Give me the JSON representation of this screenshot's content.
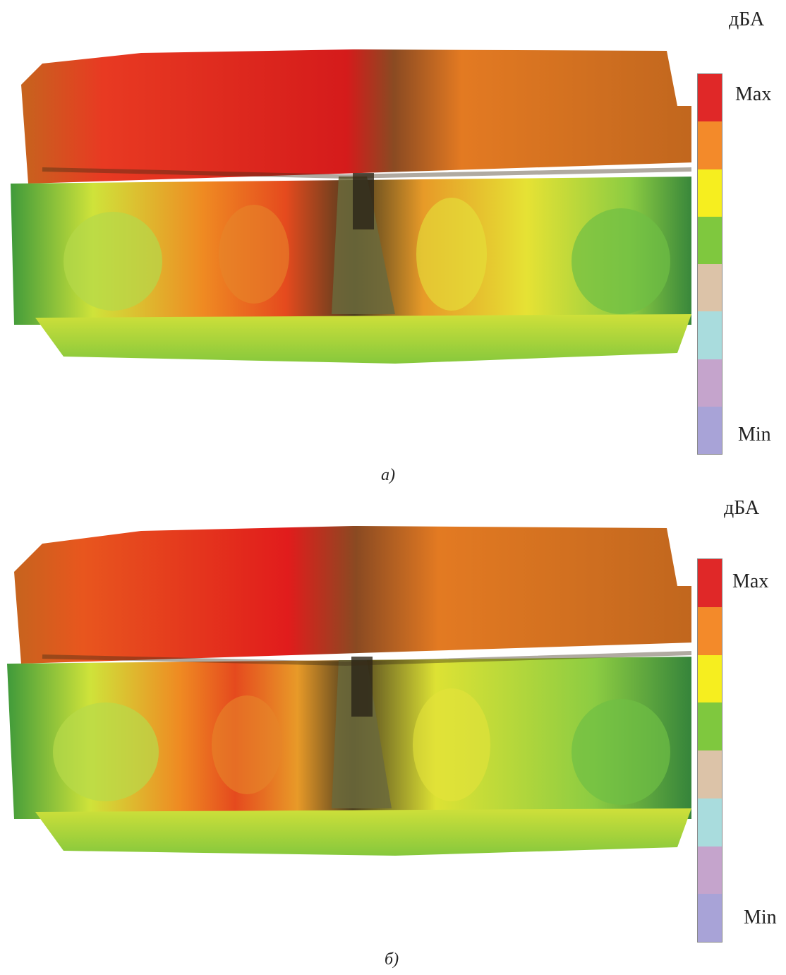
{
  "panels": [
    {
      "unit": "дБА",
      "max_label": "Max",
      "min_label": "Min",
      "caption": "а)"
    },
    {
      "unit": "дБА",
      "max_label": "Max",
      "min_label": "Min",
      "caption": "б)"
    }
  ],
  "colorbar_colors": [
    "#e02828",
    "#f38a2a",
    "#f6ee1f",
    "#7fc83e",
    "#dcc3a8",
    "#a9dcdd",
    "#c5a4cc",
    "#a8a3d7"
  ],
  "heatmap_colors": {
    "max": "#e01e1e",
    "high": "#ef7e22",
    "mid": "#f4ec28",
    "low": "#86c83c"
  }
}
